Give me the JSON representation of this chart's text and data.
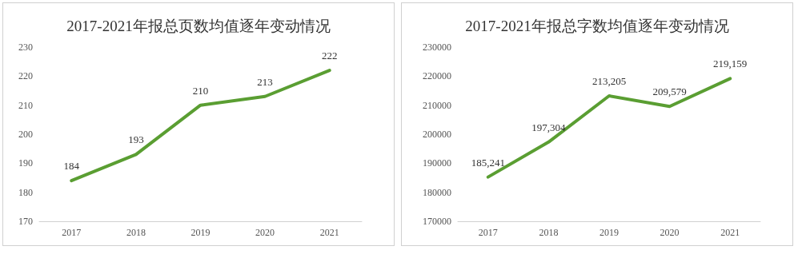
{
  "chart_data": [
    {
      "type": "line",
      "title": "2017-2021年报总页数均值逐年变动情况",
      "categories": [
        "2017",
        "2018",
        "2019",
        "2020",
        "2021"
      ],
      "values": [
        184,
        193,
        210,
        213,
        222
      ],
      "color": "#5a9e32",
      "ylim": [
        170,
        230
      ],
      "yticks": [
        170,
        180,
        190,
        200,
        210,
        220,
        230
      ],
      "data_labels": true,
      "marker": "none"
    },
    {
      "type": "line",
      "title": "2017-2021年报总字数均值逐年变动情况",
      "categories": [
        "2017",
        "2018",
        "2019",
        "2020",
        "2021"
      ],
      "values": [
        185241,
        197304,
        213205,
        209579,
        219159
      ],
      "value_labels": [
        "185,241",
        "197,304",
        "213,205",
        "209,579",
        "219,159"
      ],
      "color": "#5a9e32",
      "ylim": [
        170000,
        230000
      ],
      "yticks": [
        170000,
        180000,
        190000,
        200000,
        210000,
        220000,
        230000
      ],
      "marker": "none"
    }
  ]
}
